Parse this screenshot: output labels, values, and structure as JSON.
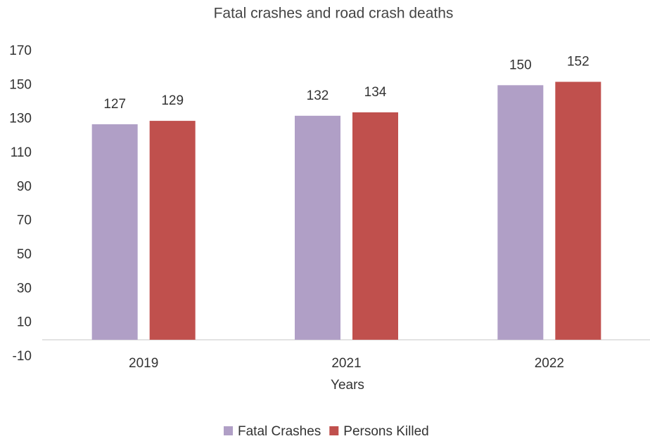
{
  "chart_data": {
    "type": "bar",
    "title": "Fatal crashes and road crash deaths",
    "x_label": "Years",
    "categories": [
      "2019",
      "2021",
      "2022"
    ],
    "series": [
      {
        "name": "Fatal Crashes",
        "color": "#b09fc6",
        "values": [
          127,
          132,
          150
        ]
      },
      {
        "name": "Persons Killed",
        "color": "#c0504d",
        "values": [
          129,
          134,
          152
        ]
      }
    ],
    "ylim": [
      -10,
      170
    ],
    "yticks": [
      -10,
      10,
      30,
      50,
      70,
      90,
      110,
      130,
      150,
      170
    ],
    "grid": false,
    "legend": "bottom",
    "data_labels": true
  }
}
